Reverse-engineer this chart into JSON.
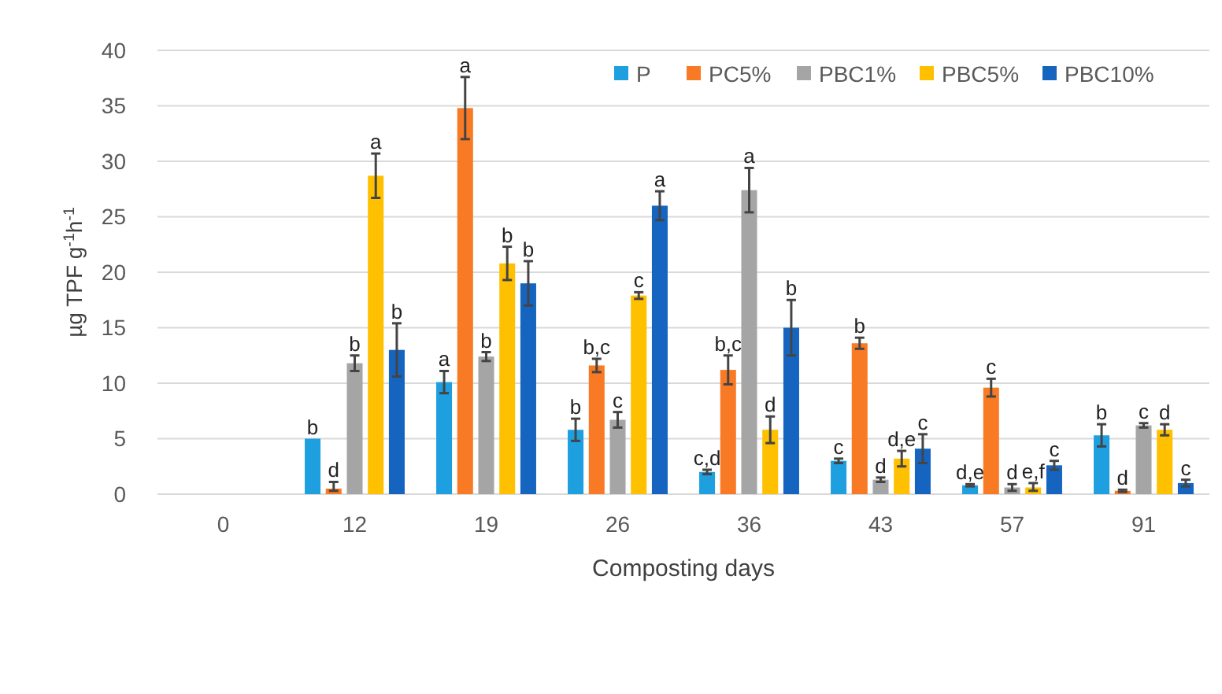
{
  "chart_data": {
    "type": "bar",
    "xlabel": "Composting days",
    "ylabel": "µg TPF g$^{-1}$h$^{-1}$",
    "categories": [
      "0",
      "12",
      "19",
      "26",
      "36",
      "43",
      "57",
      "91"
    ],
    "ylim": [
      0,
      40
    ],
    "yticks": [
      0,
      5,
      10,
      15,
      20,
      25,
      30,
      35,
      40
    ],
    "grid": "y",
    "legend": "top right",
    "series": [
      {
        "name": "P",
        "color": "#1ea0e0",
        "values": [
          null,
          5.0,
          10.1,
          5.8,
          2.0,
          3.0,
          0.8,
          5.3
        ],
        "errors": [
          null,
          null,
          1.0,
          1.0,
          0.2,
          0.2,
          0.1,
          1.0
        ],
        "value_labels": [
          null,
          "b",
          "a",
          "b",
          "c,d",
          "c",
          "d,e",
          "b"
        ]
      },
      {
        "name": "PC5%",
        "color": "#f97a24",
        "values": [
          null,
          0.5,
          34.8,
          11.6,
          11.2,
          13.6,
          9.6,
          0.3
        ],
        "errors": [
          null,
          [
            0.3,
            1.1
          ],
          2.8,
          0.6,
          1.3,
          0.5,
          0.8,
          0.1
        ],
        "value_labels": [
          null,
          "d",
          "a",
          "b,c",
          "b,c",
          "b",
          "c",
          "d"
        ]
      },
      {
        "name": "PBC1%",
        "color": "#a5a5a5",
        "values": [
          null,
          11.8,
          12.4,
          6.7,
          27.4,
          1.3,
          0.6,
          6.2
        ],
        "errors": [
          null,
          0.7,
          0.4,
          0.7,
          2.0,
          0.2,
          0.3,
          0.2
        ],
        "value_labels": [
          null,
          "b",
          "b",
          "c",
          "a",
          "d",
          "d",
          "c"
        ]
      },
      {
        "name": "PBC5%",
        "color": "#ffc000",
        "values": [
          null,
          28.7,
          20.8,
          17.9,
          5.8,
          3.2,
          0.6,
          5.8
        ],
        "errors": [
          null,
          2.0,
          1.5,
          0.3,
          1.2,
          0.7,
          [
            0.3,
            1.0
          ],
          0.5
        ],
        "value_labels": [
          null,
          "a",
          "b",
          "c",
          "d",
          "d,e",
          "e,f",
          "d"
        ]
      },
      {
        "name": "PBC10%",
        "color": "#1565c0",
        "values": [
          null,
          13.0,
          19.0,
          26.0,
          15.0,
          4.1,
          2.6,
          1.0
        ],
        "errors": [
          null,
          2.4,
          2.0,
          1.3,
          2.5,
          1.3,
          0.4,
          0.3
        ],
        "value_labels": [
          null,
          "b",
          "b",
          "a",
          "b",
          "c",
          "c",
          "c"
        ]
      }
    ]
  }
}
